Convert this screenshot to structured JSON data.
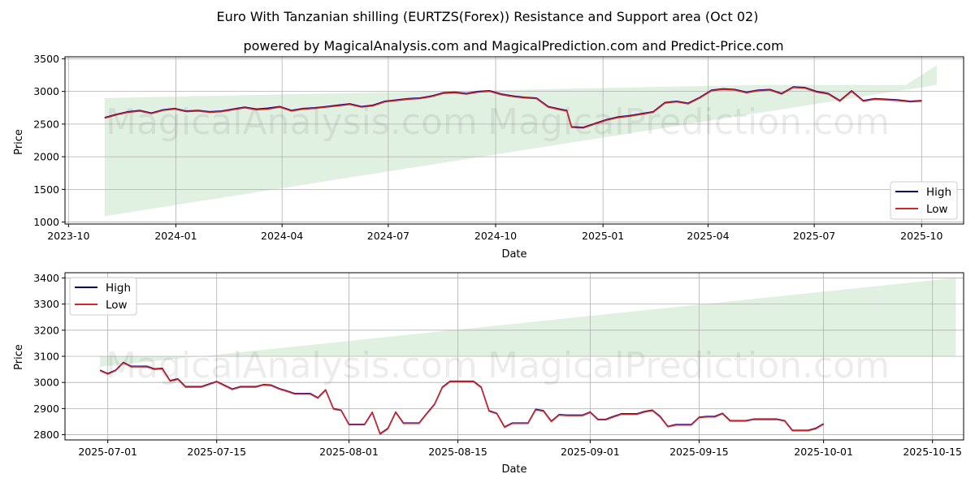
{
  "title_line1": "Euro With Tanzanian shilling (EURTZS(Forex)) Resistance and Support area (Oct 02)",
  "title_line2": "powered by MagicalAnalysis.com and MagicalPrediction.com and Predict-Price.com",
  "watermarks": [
    "MagicalAnalysis.com",
    "MagicalPrediction.com"
  ],
  "colors": {
    "high": "#00008b",
    "low": "#d62728",
    "band": "#c8e6c9",
    "grid": "#b0b0b0"
  },
  "chart_data": [
    {
      "type": "line",
      "xlabel": "Date",
      "ylabel": "Price",
      "x_ticks": [
        "2023-10",
        "2024-01",
        "2024-04",
        "2024-07",
        "2024-10",
        "2025-01",
        "2025-04",
        "2025-07",
        "2025-10"
      ],
      "x_tick_days": [
        -31,
        61,
        152,
        243,
        335,
        427,
        517,
        608,
        700
      ],
      "xlim_days": [
        -34,
        736
      ],
      "y_ticks": [
        1000,
        1500,
        2000,
        2500,
        3000,
        3500
      ],
      "ylim": [
        970,
        3530
      ],
      "legend": [
        "High",
        "Low"
      ],
      "legend_position": "lower right",
      "band": {
        "x_days": [
          0,
          713
        ],
        "upper": [
          2900,
          3100
        ],
        "lower_start": 1090,
        "lower_end": 3100,
        "upper_end_top": 3400
      },
      "series": [
        {
          "name": "Low",
          "x_days": [
            0,
            10,
            20,
            30,
            40,
            50,
            60,
            70,
            80,
            90,
            100,
            110,
            120,
            130,
            140,
            150,
            160,
            170,
            180,
            190,
            200,
            210,
            220,
            230,
            240,
            250,
            260,
            270,
            280,
            290,
            300,
            310,
            320,
            330,
            340,
            350,
            360,
            370,
            380,
            390,
            396,
            400,
            410,
            420,
            430,
            440,
            450,
            460,
            470,
            480,
            490,
            500,
            510,
            520,
            530,
            540,
            550,
            560,
            570,
            580,
            590,
            600,
            610,
            620,
            630,
            640,
            650,
            660,
            670,
            680,
            690,
            700
          ],
          "values": [
            2590,
            2640,
            2680,
            2700,
            2660,
            2710,
            2730,
            2690,
            2700,
            2680,
            2690,
            2720,
            2750,
            2720,
            2730,
            2760,
            2700,
            2730,
            2740,
            2760,
            2780,
            2800,
            2760,
            2780,
            2840,
            2860,
            2880,
            2890,
            2920,
            2970,
            2980,
            2960,
            2990,
            3000,
            2950,
            2920,
            2900,
            2890,
            2760,
            2720,
            2700,
            2450,
            2440,
            2500,
            2560,
            2600,
            2620,
            2650,
            2680,
            2820,
            2840,
            2810,
            2900,
            3010,
            3030,
            3020,
            2980,
            3010,
            3020,
            2960,
            3060,
            3050,
            2990,
            2960,
            2850,
            3000,
            2850,
            2880,
            2870,
            2860,
            2840,
            2850
          ]
        },
        {
          "name": "High",
          "x_days": [
            0,
            10,
            20,
            30,
            40,
            50,
            60,
            70,
            80,
            90,
            100,
            110,
            120,
            130,
            140,
            150,
            160,
            170,
            180,
            190,
            200,
            210,
            220,
            230,
            240,
            250,
            260,
            270,
            280,
            290,
            300,
            310,
            320,
            330,
            340,
            350,
            360,
            370,
            380,
            390,
            396,
            400,
            410,
            420,
            430,
            440,
            450,
            460,
            470,
            480,
            490,
            500,
            510,
            520,
            530,
            540,
            550,
            560,
            570,
            580,
            590,
            600,
            610,
            620,
            630,
            640,
            650,
            660,
            670,
            680,
            690,
            700
          ],
          "values": [
            2600,
            2650,
            2690,
            2710,
            2670,
            2720,
            2740,
            2700,
            2710,
            2690,
            2700,
            2730,
            2760,
            2730,
            2745,
            2770,
            2710,
            2740,
            2750,
            2770,
            2790,
            2810,
            2770,
            2790,
            2850,
            2870,
            2890,
            2900,
            2930,
            2980,
            2990,
            2970,
            3000,
            3010,
            2960,
            2930,
            2910,
            2900,
            2770,
            2730,
            2710,
            2460,
            2450,
            2510,
            2570,
            2610,
            2630,
            2660,
            2690,
            2830,
            2850,
            2820,
            2910,
            3020,
            3040,
            3030,
            2990,
            3020,
            3030,
            2970,
            3070,
            3060,
            3000,
            2970,
            2860,
            3010,
            2860,
            2890,
            2880,
            2870,
            2850,
            2860
          ]
        }
      ]
    },
    {
      "type": "line",
      "xlabel": "Date",
      "ylabel": "Price",
      "x_ticks": [
        "2025-07-01",
        "2025-07-15",
        "2025-08-01",
        "2025-08-15",
        "2025-09-01",
        "2025-09-15",
        "2025-10-01",
        "2025-10-15"
      ],
      "x_tick_days": [
        0,
        14,
        31,
        45,
        62,
        76,
        92,
        106
      ],
      "xlim_days": [
        -5.5,
        110
      ],
      "y_ticks": [
        2800,
        2900,
        3000,
        3100,
        3200,
        3300,
        3400
      ],
      "ylim": [
        2780,
        3420
      ],
      "legend": [
        "High",
        "Low"
      ],
      "legend_position": "upper left",
      "band": {
        "x_days": [
          -1,
          109
        ],
        "lower": 3100,
        "upper_start": 3060,
        "upper_end": 3400
      },
      "series": [
        {
          "name": "Low",
          "x_days": [
            -1,
            0,
            1,
            2,
            3,
            4,
            5,
            6,
            7,
            8,
            9,
            10,
            11,
            12,
            14,
            16,
            17,
            18,
            19,
            20,
            21,
            22,
            23,
            24,
            25,
            26,
            27,
            28,
            29,
            30,
            31,
            32,
            33,
            34,
            35,
            36,
            37,
            38,
            39,
            40,
            41,
            42,
            43,
            44,
            45,
            46,
            47,
            48,
            49,
            50,
            51,
            52,
            53,
            54,
            55,
            56,
            57,
            58,
            59,
            60,
            61,
            62,
            63,
            64,
            65,
            66,
            67,
            68,
            69,
            70,
            71,
            72,
            73,
            74,
            75,
            76,
            77,
            78,
            79,
            80,
            81,
            82,
            83,
            84,
            85,
            86,
            87,
            88,
            89,
            90,
            91,
            92
          ],
          "values": [
            3045,
            3032,
            3045,
            3075,
            3060,
            3060,
            3060,
            3050,
            3052,
            3005,
            3012,
            2982,
            2982,
            2982,
            3002,
            2973,
            2982,
            2982,
            2982,
            2990,
            2988,
            2975,
            2966,
            2956,
            2956,
            2956,
            2940,
            2970,
            2898,
            2892,
            2838,
            2838,
            2838,
            2884,
            2802,
            2822,
            2885,
            2843,
            2843,
            2843,
            2880,
            2915,
            2980,
            3003,
            3003,
            3003,
            3003,
            2980,
            2890,
            2880,
            2828,
            2843,
            2843,
            2843,
            2895,
            2890,
            2850,
            2875,
            2873,
            2873,
            2873,
            2885,
            2857,
            2857,
            2868,
            2878,
            2878,
            2878,
            2887,
            2892,
            2868,
            2830,
            2837,
            2837,
            2837,
            2865,
            2868,
            2868,
            2880,
            2852,
            2852,
            2852,
            2858,
            2858,
            2858,
            2858,
            2852,
            2815,
            2815,
            2815,
            2823,
            2840
          ]
        },
        {
          "name": "High",
          "x_days": [
            -1,
            0,
            1,
            2,
            3,
            4,
            5,
            6,
            7,
            8,
            9,
            10,
            11,
            12,
            14,
            16,
            17,
            18,
            19,
            20,
            21,
            22,
            23,
            24,
            25,
            26,
            27,
            28,
            29,
            30,
            31,
            32,
            33,
            34,
            35,
            36,
            37,
            38,
            39,
            40,
            41,
            42,
            43,
            44,
            45,
            46,
            47,
            48,
            49,
            50,
            51,
            52,
            53,
            54,
            55,
            56,
            57,
            58,
            59,
            60,
            61,
            62,
            63,
            64,
            65,
            66,
            67,
            68,
            69,
            70,
            71,
            72,
            73,
            74,
            75,
            76,
            77,
            78,
            79,
            80,
            81,
            82,
            83,
            84,
            85,
            86,
            87,
            88,
            89,
            90,
            91,
            92
          ],
          "values": [
            3047,
            3034,
            3047,
            3077,
            3062,
            3062,
            3062,
            3052,
            3054,
            3007,
            3014,
            2984,
            2984,
            2984,
            3004,
            2975,
            2984,
            2984,
            2984,
            2992,
            2990,
            2977,
            2968,
            2958,
            2958,
            2958,
            2942,
            2972,
            2900,
            2894,
            2840,
            2840,
            2840,
            2886,
            2804,
            2824,
            2887,
            2845,
            2845,
            2845,
            2882,
            2917,
            2982,
            3005,
            3005,
            3005,
            3005,
            2982,
            2892,
            2882,
            2830,
            2845,
            2845,
            2845,
            2897,
            2892,
            2852,
            2877,
            2875,
            2875,
            2875,
            2887,
            2859,
            2859,
            2870,
            2880,
            2880,
            2880,
            2889,
            2894,
            2870,
            2832,
            2839,
            2839,
            2839,
            2867,
            2870,
            2870,
            2882,
            2854,
            2854,
            2854,
            2860,
            2860,
            2860,
            2860,
            2854,
            2817,
            2817,
            2817,
            2825,
            2842
          ]
        }
      ]
    }
  ]
}
